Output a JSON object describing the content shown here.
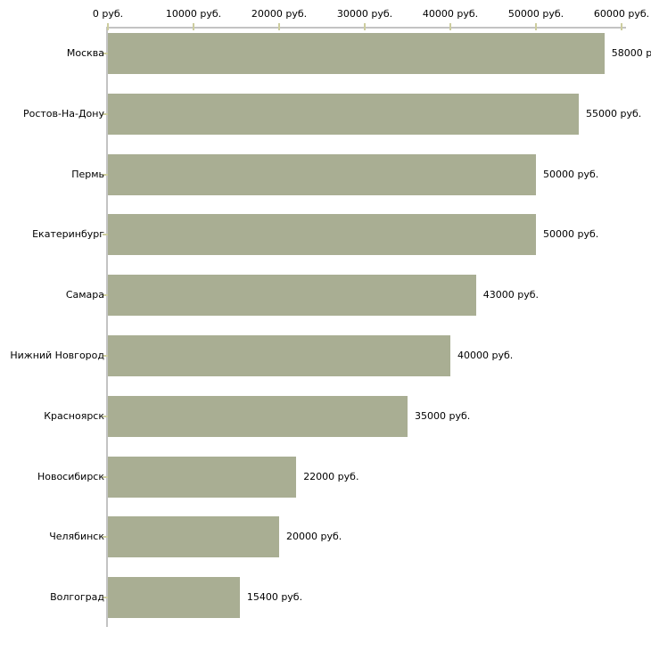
{
  "chart_data": {
    "type": "bar",
    "orientation": "horizontal",
    "title": "",
    "categories": [
      "Москва",
      "Ростов-На-Дону",
      "Пермь",
      "Екатеринбург",
      "Самара",
      "Нижний Новгород",
      "Красноярск",
      "Новосибирск",
      "Челябинск",
      "Волгоград"
    ],
    "values": [
      58000,
      55000,
      50000,
      50000,
      43000,
      40000,
      35000,
      22000,
      20000,
      15400
    ],
    "value_labels": [
      "58000 р",
      "55000 руб.",
      "50000 руб.",
      "50000 руб.",
      "43000 руб.",
      "40000 руб.",
      "35000 руб.",
      "22000 руб.",
      "20000 руб.",
      "15400 руб."
    ],
    "x_tick_labels": [
      "0 руб.",
      "10000 руб.",
      "20000 руб.",
      "30000 руб.",
      "40000 руб.",
      "50000 руб.",
      "60000 руб."
    ],
    "x_tick_values": [
      0,
      10000,
      20000,
      30000,
      40000,
      50000,
      60000
    ],
    "xlim": [
      0,
      60000
    ],
    "xlabel": "",
    "ylabel": "",
    "legend": "none",
    "grid": false,
    "colors": {
      "bar": "#a9ae93",
      "axis_line": "#c3c3c3",
      "tick_mark": "#cdcd9f",
      "text": "#000000",
      "background": "#ffffff"
    }
  }
}
